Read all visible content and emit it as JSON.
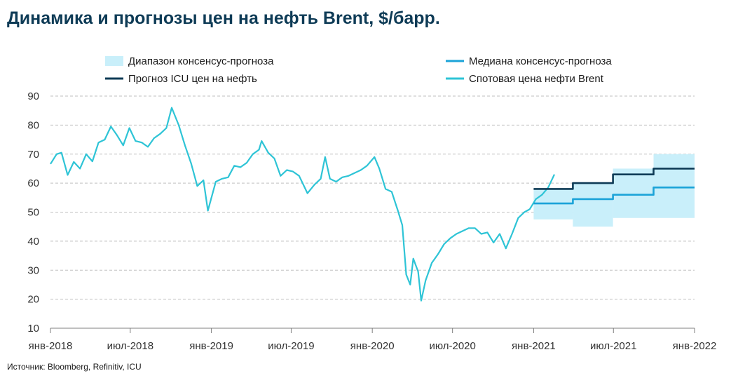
{
  "title": "Динамика и прогнозы цен на нефть Brent, $/барр.",
  "source": "Источник: Bloomberg, Refinitiv, ICU",
  "colors": {
    "spot": "#2ec4d6",
    "median": "#1ba3d8",
    "icu": "#0e3b56",
    "range": "#c9effa",
    "grid": "#bfbfbf",
    "axis": "#7f7f7f",
    "title": "#0e3b56"
  },
  "chart_data": {
    "type": "line",
    "title": "Динамика и прогнозы цен на нефть Brent, $/барр.",
    "ylim": [
      10,
      90
    ],
    "yticks": [
      10,
      20,
      30,
      40,
      50,
      60,
      70,
      80,
      90
    ],
    "xlim": [
      "2018-01-01",
      "2022-01-01"
    ],
    "xticks": [
      {
        "date": "2018-01-01",
        "label": "янв-2018"
      },
      {
        "date": "2018-07-01",
        "label": "июл-2018"
      },
      {
        "date": "2019-01-01",
        "label": "янв-2019"
      },
      {
        "date": "2019-07-01",
        "label": "июл-2019"
      },
      {
        "date": "2020-01-01",
        "label": "янв-2020"
      },
      {
        "date": "2020-07-01",
        "label": "июл-2020"
      },
      {
        "date": "2021-01-01",
        "label": "янв-2021"
      },
      {
        "date": "2021-07-01",
        "label": "июл-2021"
      },
      {
        "date": "2022-01-01",
        "label": "янв-2022"
      }
    ],
    "grid": true,
    "legend": [
      {
        "key": "range",
        "label": "Диапазон консенсус-прогноза",
        "style": "band"
      },
      {
        "key": "median",
        "label": "Медиана консенсус-прогноза",
        "style": "line"
      },
      {
        "key": "icu",
        "label": "Прогноз ICU цен на нефть",
        "style": "line"
      },
      {
        "key": "spot",
        "label": "Спотовая цена нефти Brent",
        "style": "line"
      }
    ],
    "series": [
      {
        "name": "Спотовая цена нефти Brent",
        "key": "spot",
        "points": [
          [
            "2018-01-01",
            66.6
          ],
          [
            "2018-01-15",
            70.0
          ],
          [
            "2018-01-26",
            70.5
          ],
          [
            "2018-02-09",
            62.8
          ],
          [
            "2018-02-23",
            67.3
          ],
          [
            "2018-03-09",
            65.0
          ],
          [
            "2018-03-23",
            70.0
          ],
          [
            "2018-04-06",
            67.5
          ],
          [
            "2018-04-20",
            74.0
          ],
          [
            "2018-05-04",
            75.0
          ],
          [
            "2018-05-18",
            79.5
          ],
          [
            "2018-06-01",
            76.5
          ],
          [
            "2018-06-15",
            73.0
          ],
          [
            "2018-06-29",
            79.0
          ],
          [
            "2018-07-13",
            74.5
          ],
          [
            "2018-07-27",
            74.0
          ],
          [
            "2018-08-10",
            72.5
          ],
          [
            "2018-08-24",
            75.5
          ],
          [
            "2018-09-07",
            77.0
          ],
          [
            "2018-09-21",
            79.0
          ],
          [
            "2018-10-03",
            86.0
          ],
          [
            "2018-10-19",
            80.0
          ],
          [
            "2018-11-02",
            73.0
          ],
          [
            "2018-11-16",
            66.8
          ],
          [
            "2018-11-30",
            59.0
          ],
          [
            "2018-12-14",
            61.0
          ],
          [
            "2018-12-24",
            50.5
          ],
          [
            "2019-01-11",
            60.5
          ],
          [
            "2019-01-25",
            61.5
          ],
          [
            "2019-02-08",
            62.0
          ],
          [
            "2019-02-22",
            66.0
          ],
          [
            "2019-03-08",
            65.5
          ],
          [
            "2019-03-22",
            67.0
          ],
          [
            "2019-04-05",
            70.0
          ],
          [
            "2019-04-19",
            71.5
          ],
          [
            "2019-04-25",
            74.5
          ],
          [
            "2019-05-10",
            70.5
          ],
          [
            "2019-05-24",
            68.5
          ],
          [
            "2019-06-07",
            62.5
          ],
          [
            "2019-06-21",
            64.5
          ],
          [
            "2019-07-05",
            64.0
          ],
          [
            "2019-07-19",
            62.5
          ],
          [
            "2019-08-07",
            56.5
          ],
          [
            "2019-08-23",
            59.5
          ],
          [
            "2019-09-06",
            61.5
          ],
          [
            "2019-09-16",
            69.0
          ],
          [
            "2019-09-27",
            61.5
          ],
          [
            "2019-10-11",
            60.5
          ],
          [
            "2019-10-25",
            62.0
          ],
          [
            "2019-11-08",
            62.5
          ],
          [
            "2019-11-22",
            63.5
          ],
          [
            "2019-12-06",
            64.5
          ],
          [
            "2019-12-20",
            66.0
          ],
          [
            "2020-01-06",
            69.0
          ],
          [
            "2020-01-17",
            65.0
          ],
          [
            "2020-01-31",
            58.0
          ],
          [
            "2020-02-14",
            57.0
          ],
          [
            "2020-02-28",
            50.5
          ],
          [
            "2020-03-09",
            45.5
          ],
          [
            "2020-03-18",
            28.5
          ],
          [
            "2020-03-27",
            25.0
          ],
          [
            "2020-04-03",
            34.0
          ],
          [
            "2020-04-14",
            29.5
          ],
          [
            "2020-04-21",
            19.5
          ],
          [
            "2020-05-01",
            26.5
          ],
          [
            "2020-05-15",
            32.5
          ],
          [
            "2020-05-29",
            35.5
          ],
          [
            "2020-06-12",
            39.0
          ],
          [
            "2020-06-26",
            41.0
          ],
          [
            "2020-07-10",
            42.5
          ],
          [
            "2020-07-24",
            43.5
          ],
          [
            "2020-08-07",
            44.5
          ],
          [
            "2020-08-21",
            44.5
          ],
          [
            "2020-09-04",
            42.5
          ],
          [
            "2020-09-18",
            43.0
          ],
          [
            "2020-10-02",
            39.5
          ],
          [
            "2020-10-16",
            42.5
          ],
          [
            "2020-10-30",
            37.5
          ],
          [
            "2020-11-13",
            42.5
          ],
          [
            "2020-11-27",
            48.0
          ],
          [
            "2020-12-11",
            50.0
          ],
          [
            "2020-12-23",
            51.0
          ],
          [
            "2021-01-06",
            54.5
          ],
          [
            "2021-01-20",
            56.0
          ],
          [
            "2021-02-03",
            58.5
          ],
          [
            "2021-02-17",
            63.0
          ]
        ]
      },
      {
        "name": "Медиана консенсус-прогноза",
        "key": "median",
        "style": "step",
        "points": [
          [
            "2021-01-01",
            53.0
          ],
          [
            "2021-03-31",
            53.0
          ],
          [
            "2021-03-31",
            54.5
          ],
          [
            "2021-06-30",
            54.5
          ],
          [
            "2021-06-30",
            56.0
          ],
          [
            "2021-09-30",
            56.0
          ],
          [
            "2021-09-30",
            58.5
          ],
          [
            "2022-01-01",
            58.5
          ]
        ]
      },
      {
        "name": "Прогноз ICU цен на нефть",
        "key": "icu",
        "style": "step",
        "points": [
          [
            "2021-01-01",
            58.0
          ],
          [
            "2021-03-31",
            58.0
          ],
          [
            "2021-03-31",
            60.0
          ],
          [
            "2021-06-30",
            60.0
          ],
          [
            "2021-06-30",
            63.0
          ],
          [
            "2021-09-30",
            63.0
          ],
          [
            "2021-09-30",
            65.0
          ],
          [
            "2022-01-01",
            65.0
          ]
        ]
      }
    ],
    "range_band": {
      "name": "Диапазон консенсус-прогноза",
      "key": "range",
      "segments": [
        {
          "from": "2021-01-01",
          "to": "2021-03-31",
          "low": 47.5,
          "high": 58.0
        },
        {
          "from": "2021-03-31",
          "to": "2021-06-30",
          "low": 45.0,
          "high": 60.0
        },
        {
          "from": "2021-06-30",
          "to": "2021-09-30",
          "low": 48.0,
          "high": 65.0
        },
        {
          "from": "2021-09-30",
          "to": "2022-01-01",
          "low": 48.0,
          "high": 70.0
        }
      ]
    }
  }
}
